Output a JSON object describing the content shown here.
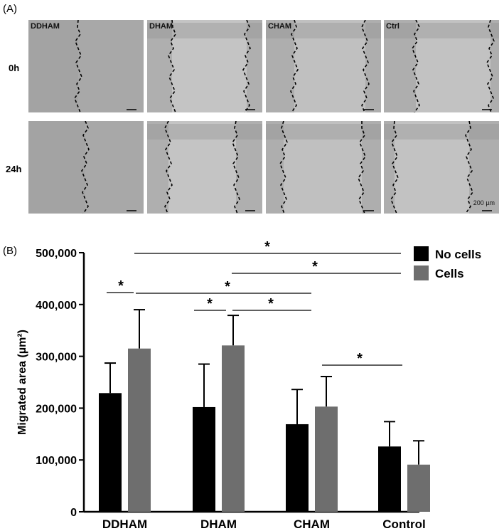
{
  "panel_a": {
    "label": "(A)",
    "columns": [
      "DDHAM",
      "DHAM",
      "CHAM",
      "Ctrl"
    ],
    "rows": [
      "0h",
      "24h"
    ],
    "scale_bar": "200 µm"
  },
  "panel_b": {
    "label": "(B)"
  },
  "chart_data": {
    "type": "bar",
    "categories": [
      "DDHAM",
      "DHAM",
      "CHAM",
      "Control"
    ],
    "series": [
      {
        "name": "No cells",
        "color": "#000000",
        "values": [
          229000,
          202000,
          169000,
          126000
        ],
        "errors": [
          58000,
          83000,
          67000,
          48000
        ]
      },
      {
        "name": "Cells",
        "color": "#6e6e6e",
        "values": [
          315000,
          321000,
          203000,
          91000
        ],
        "errors": [
          75000,
          58000,
          58000,
          46000
        ]
      }
    ],
    "ylabel": "Migrated area (µm²)",
    "ylim": [
      0,
      500000
    ],
    "yticks": [
      0,
      100000,
      200000,
      300000,
      400000,
      500000
    ],
    "ytick_labels": [
      "0",
      "100,000",
      "200,000",
      "300,000",
      "400,000",
      "500,000"
    ],
    "legend_position": "top-right",
    "significance": [
      {
        "from": "DDHAM No cells",
        "to": "DDHAM Cells",
        "label": "*"
      },
      {
        "from": "DDHAM Cells",
        "to": "Control",
        "label": "*"
      },
      {
        "from": "DDHAM Cells",
        "to": "CHAM",
        "label": "*"
      },
      {
        "from": "DHAM Cells",
        "to": "Control",
        "label": "*"
      },
      {
        "from": "DHAM No cells",
        "to": "DHAM Cells",
        "label": "*"
      },
      {
        "from": "DHAM Cells",
        "to": "CHAM",
        "label": "*"
      },
      {
        "from": "CHAM Cells",
        "to": "Control",
        "label": "*"
      }
    ]
  }
}
